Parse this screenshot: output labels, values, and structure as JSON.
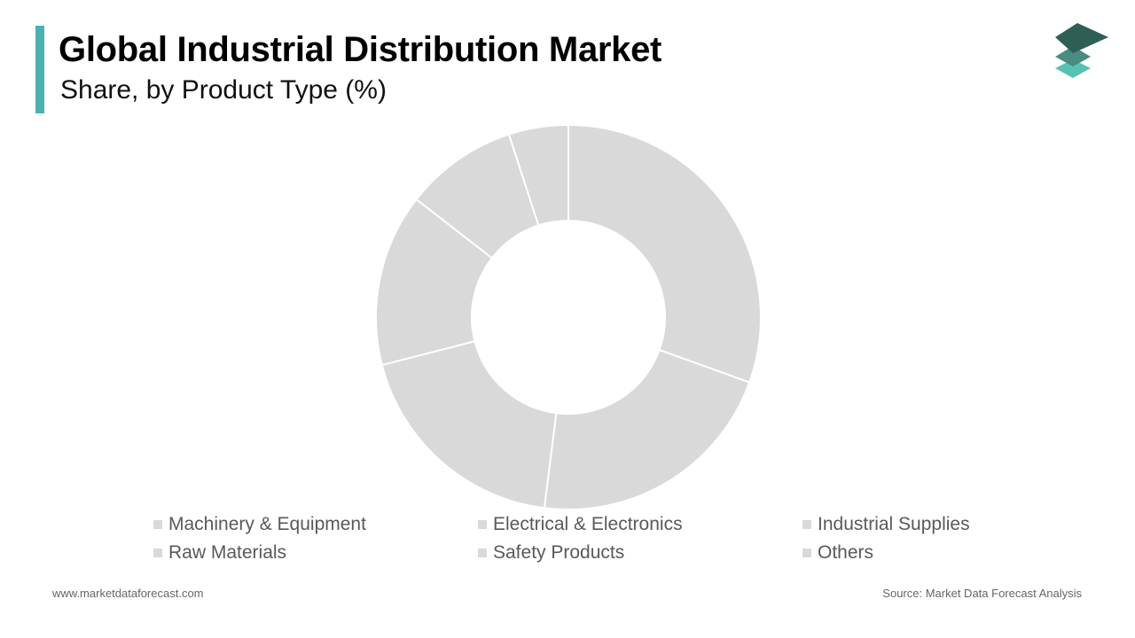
{
  "header": {
    "title": "Global Industrial Distribution Market",
    "subtitle": "Share, by Product Type (%)",
    "accent_color": "#4db0b0"
  },
  "logo": {
    "icon": "stacked-layers-icon",
    "colors": [
      "#2d5f55",
      "#4a8c80",
      "#56c2b6"
    ]
  },
  "chart_data": {
    "type": "pie",
    "subtype": "donut",
    "title": "Global Industrial Distribution Market",
    "subtitle": "Share, by Product Type (%)",
    "categories": [
      "Machinery & Equipment",
      "Electrical & Electronics",
      "Industrial Supplies",
      "Raw Materials",
      "Safety Products",
      "Others"
    ],
    "values": [
      30.5,
      21.5,
      19,
      14.5,
      9.5,
      5
    ],
    "colors": [
      "#d9d9d9",
      "#d9d9d9",
      "#d9d9d9",
      "#d9d9d9",
      "#d9d9d9",
      "#d9d9d9"
    ],
    "separator_color": "#ffffff",
    "legend_position": "bottom",
    "legend_swatch_color": "#d9d9d9"
  },
  "footer": {
    "website": "www.marketdataforecast.com",
    "source": "Source: Market Data Forecast Analysis"
  }
}
